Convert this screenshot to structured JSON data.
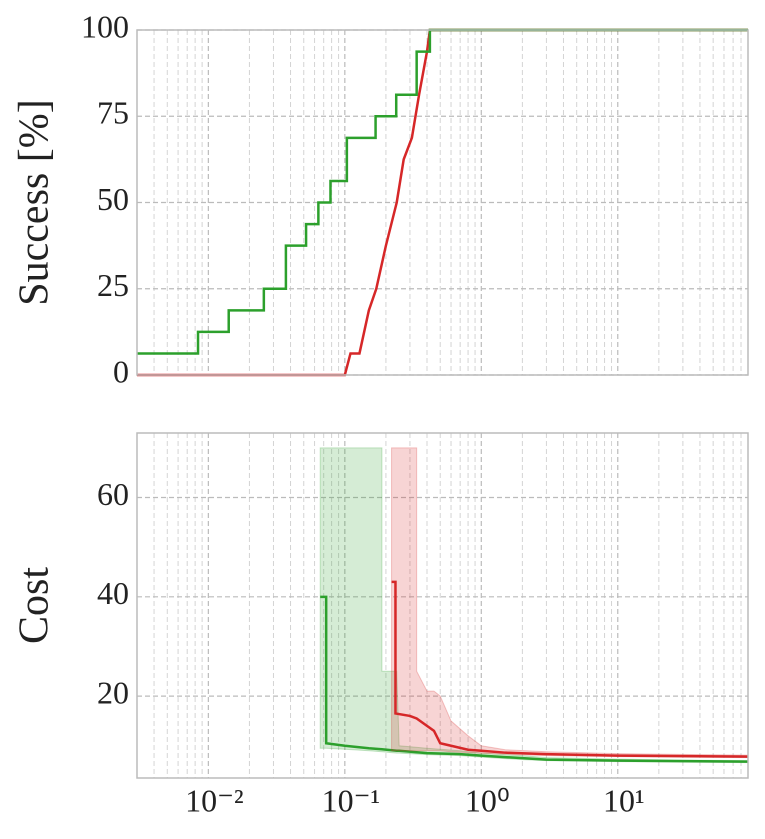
{
  "chart_data": [
    {
      "type": "line",
      "ylabel": "Success [%]",
      "xscale": "log",
      "grid": true,
      "xlim": [
        0.003,
        90
      ],
      "ylim": [
        0,
        100
      ],
      "yticks": [
        0,
        25,
        50,
        75,
        100
      ],
      "xticks": [
        0.01,
        0.1,
        1,
        10
      ],
      "xminorticks": [
        0.004,
        0.005,
        0.006,
        0.007,
        0.008,
        0.009,
        0.02,
        0.03,
        0.04,
        0.05,
        0.06,
        0.07,
        0.08,
        0.09,
        0.2,
        0.3,
        0.4,
        0.5,
        0.6,
        0.7,
        0.8,
        0.9,
        2,
        3,
        4,
        5,
        6,
        7,
        8,
        9,
        20,
        30,
        40,
        50,
        60,
        70,
        80
      ],
      "series": [
        {
          "color": "#d62728",
          "x": [
            0.003,
            0.1,
            0.11,
            0.128,
            0.15,
            0.17,
            0.2,
            0.24,
            0.27,
            0.31,
            0.35,
            0.4,
            0.42,
            90
          ],
          "values": [
            0,
            0,
            6.25,
            6.25,
            18.75,
            25,
            37.5,
            50,
            62.5,
            68.75,
            81.25,
            93.75,
            100,
            100
          ]
        },
        {
          "color": "#2ca02c",
          "x": [
            0.003,
            0.0084,
            0.0084,
            0.0141,
            0.0141,
            0.0255,
            0.0255,
            0.037,
            0.037,
            0.052,
            0.052,
            0.064,
            0.064,
            0.0785,
            0.0785,
            0.1035,
            0.1035,
            0.168,
            0.168,
            0.238,
            0.238,
            0.336,
            0.336,
            0.42,
            0.42,
            90
          ],
          "values": [
            6.25,
            6.25,
            12.5,
            12.5,
            18.75,
            18.75,
            25,
            25,
            37.5,
            37.5,
            43.75,
            43.75,
            50,
            50,
            56.25,
            56.25,
            68.75,
            68.75,
            75,
            75,
            81.25,
            81.25,
            93.75,
            93.75,
            100,
            100
          ]
        }
      ]
    },
    {
      "type": "line",
      "ylabel": "Cost",
      "xscale": "log",
      "grid": true,
      "xlim": [
        0.003,
        90
      ],
      "ylim": [
        3.5,
        73
      ],
      "yticks": [
        20,
        40,
        60
      ],
      "xticks": [
        {
          "value": 0.01,
          "label": "10⁻²"
        },
        {
          "value": 0.1,
          "label": "10⁻¹"
        },
        {
          "value": 1,
          "label": "10⁰"
        },
        {
          "value": 10,
          "label": "10¹"
        }
      ],
      "xminorticks": [
        0.004,
        0.005,
        0.006,
        0.007,
        0.008,
        0.009,
        0.02,
        0.03,
        0.04,
        0.05,
        0.06,
        0.07,
        0.08,
        0.09,
        0.2,
        0.3,
        0.4,
        0.5,
        0.6,
        0.7,
        0.8,
        0.9,
        2,
        3,
        4,
        5,
        6,
        7,
        8,
        9,
        20,
        30,
        40,
        50,
        60,
        70,
        80
      ],
      "series": [
        {
          "color": "#2ca02c",
          "x": [
            0.066,
            0.073,
            0.073,
            0.1,
            0.15,
            0.187,
            0.187,
            0.24,
            0.25,
            0.4,
            0.7,
            1,
            2,
            3,
            10,
            30,
            90
          ],
          "values": [
            40,
            40,
            10.5,
            10,
            9.5,
            9.3,
            9.3,
            9,
            9,
            8.5,
            8.3,
            8,
            7.5,
            7.2,
            7,
            6.9,
            6.8
          ],
          "band_upper": [
            70,
            70,
            70,
            70,
            70,
            70,
            25,
            25,
            10,
            9.5,
            9,
            8.5,
            8,
            7.6,
            7.3,
            7.1,
            7
          ],
          "band_lower": [
            9.5,
            9.5,
            9.5,
            9.3,
            9,
            8.8,
            8.8,
            8.5,
            8.5,
            8.2,
            8,
            7.7,
            7.2,
            7,
            6.8,
            6.7,
            6.6
          ]
        },
        {
          "color": "#d62728",
          "x": [
            0.22,
            0.235,
            0.235,
            0.3,
            0.336,
            0.336,
            0.4,
            0.45,
            0.5,
            0.6,
            0.8,
            1,
            1.5,
            3,
            10,
            90
          ],
          "values": [
            43,
            43,
            16.5,
            16,
            15.5,
            15.5,
            14,
            13,
            10.5,
            10,
            9.2,
            9,
            8.6,
            8.3,
            8,
            7.8
          ],
          "band_upper": [
            70,
            70,
            70,
            70,
            70,
            25,
            21,
            21,
            20,
            15,
            12,
            10,
            9.2,
            8.8,
            8.4,
            8.1
          ],
          "band_lower": [
            9,
            9,
            9,
            9,
            9,
            9,
            9,
            9,
            9,
            8.8,
            8.6,
            8.5,
            8.3,
            8,
            7.8,
            7.6
          ]
        }
      ]
    }
  ]
}
